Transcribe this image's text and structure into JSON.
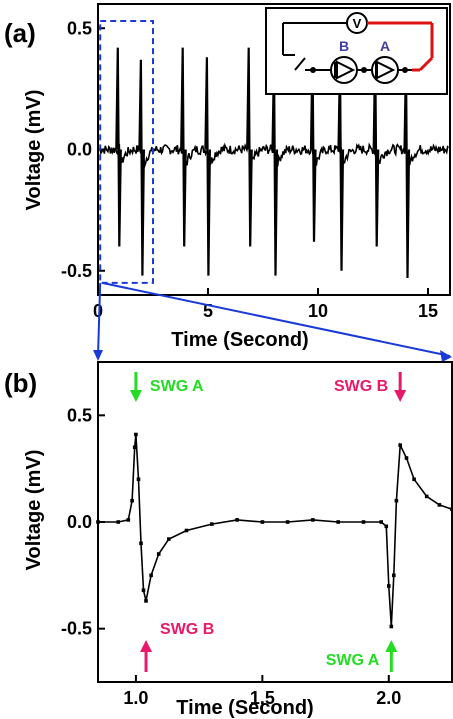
{
  "chart_data": [
    {
      "panel_label": "(a)",
      "type": "line",
      "xlabel": "Time (Second)",
      "ylabel": "Voltage (mV)",
      "xlim": [
        0,
        16
      ],
      "ylim": [
        -0.6,
        0.6
      ],
      "x_ticks": [
        0,
        5,
        10,
        15
      ],
      "y_ticks": [
        -0.5,
        0.0,
        0.5
      ],
      "x_tick_labels": [
        "0",
        "5",
        "10",
        "15"
      ],
      "y_tick_labels": [
        "-0.5",
        "0.0",
        "0.5"
      ],
      "baseline_noise_mV": 0.02,
      "spikes": [
        {
          "t": 0.9,
          "peak": 0.42,
          "trough": -0.4
        },
        {
          "t": 1.95,
          "peak": 0.37,
          "trough": -0.52
        },
        {
          "t": 3.85,
          "peak": 0.42,
          "trough": -0.4
        },
        {
          "t": 4.95,
          "peak": 0.38,
          "trough": -0.52
        },
        {
          "t": 6.85,
          "peak": 0.42,
          "trough": -0.4
        },
        {
          "t": 8.0,
          "peak": 0.37,
          "trough": -0.52
        },
        {
          "t": 9.75,
          "peak": 0.41,
          "trough": -0.38
        },
        {
          "t": 11.0,
          "peak": 0.37,
          "trough": -0.5
        },
        {
          "t": 12.6,
          "peak": 0.42,
          "trough": -0.4
        },
        {
          "t": 14.0,
          "peak": 0.37,
          "trough": -0.53
        }
      ],
      "zoom_box": {
        "x": [
          0.1,
          2.5
        ],
        "y": [
          -0.55,
          0.53
        ]
      },
      "inset": {
        "meter_label": "V",
        "device_labels": [
          "B",
          "A"
        ]
      }
    },
    {
      "panel_label": "(b)",
      "type": "line",
      "xlabel": "Time (Second)",
      "ylabel": "Voltage (mV)",
      "xlim": [
        0.85,
        2.25
      ],
      "ylim": [
        -0.75,
        0.75
      ],
      "x_ticks": [
        1.0,
        1.5,
        2.0
      ],
      "y_ticks": [
        -0.5,
        0.0,
        0.5
      ],
      "x_tick_labels": [
        "1.0",
        "1.5",
        "2.0"
      ],
      "y_tick_labels": [
        "-0.5",
        "0.0",
        "0.5"
      ],
      "series_points": [
        [
          0.85,
          0.0
        ],
        [
          0.93,
          0.0
        ],
        [
          0.97,
          0.01
        ],
        [
          0.985,
          0.1
        ],
        [
          0.995,
          0.35
        ],
        [
          1.0,
          0.41
        ],
        [
          1.01,
          0.2
        ],
        [
          1.02,
          -0.1
        ],
        [
          1.03,
          -0.32
        ],
        [
          1.04,
          -0.37
        ],
        [
          1.06,
          -0.25
        ],
        [
          1.09,
          -0.15
        ],
        [
          1.13,
          -0.08
        ],
        [
          1.2,
          -0.04
        ],
        [
          1.3,
          -0.01
        ],
        [
          1.4,
          0.01
        ],
        [
          1.5,
          0.0
        ],
        [
          1.6,
          0.0
        ],
        [
          1.7,
          0.01
        ],
        [
          1.8,
          0.0
        ],
        [
          1.9,
          0.0
        ],
        [
          1.97,
          0.0
        ],
        [
          1.99,
          -0.02
        ],
        [
          2.0,
          -0.3
        ],
        [
          2.01,
          -0.49
        ],
        [
          2.02,
          -0.25
        ],
        [
          2.03,
          0.1
        ],
        [
          2.045,
          0.36
        ],
        [
          2.07,
          0.3
        ],
        [
          2.1,
          0.2
        ],
        [
          2.15,
          0.12
        ],
        [
          2.2,
          0.08
        ],
        [
          2.25,
          0.06
        ]
      ],
      "annotations": [
        {
          "text": "SWG A",
          "arrow_x": 1.0,
          "arrow": "down",
          "position": "top",
          "color": "#22dd22"
        },
        {
          "text": "SWG B",
          "arrow_x": 2.045,
          "arrow": "down",
          "position": "top",
          "color": "#e8196a"
        },
        {
          "text": "SWG B",
          "arrow_x": 1.04,
          "arrow": "up",
          "position": "bottom",
          "color": "#e8196a"
        },
        {
          "text": "SWG A",
          "arrow_x": 2.01,
          "arrow": "up",
          "position": "bottom",
          "color": "#22dd22"
        }
      ]
    }
  ],
  "colors": {
    "trace": "#000000",
    "zoom": "#1a3ad8",
    "wire_red": "#dd1111",
    "inset_label": "#4040a0"
  }
}
